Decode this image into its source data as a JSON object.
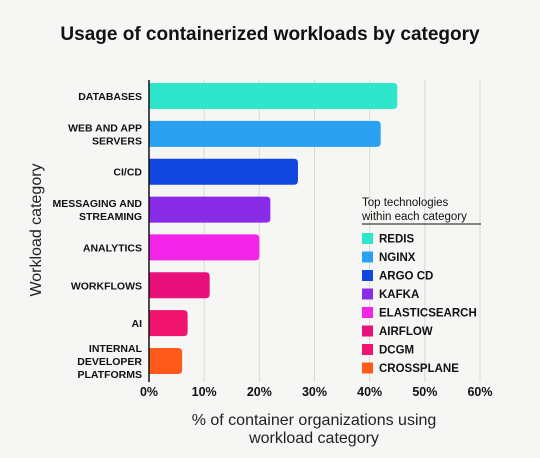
{
  "chart_data": {
    "type": "bar",
    "orientation": "horizontal",
    "title": "Usage of containerized workloads by category",
    "xlabel": "% of container organizations using workload category",
    "ylabel": "Workload category",
    "xlim": [
      0,
      60
    ],
    "xticks": [
      "0%",
      "10%",
      "20%",
      "30%",
      "40%",
      "50%",
      "60%"
    ],
    "grid": "vertical",
    "categories": [
      "DATABASES",
      "WEB AND APP SERVERS",
      "CI/CD",
      "MESSAGING AND STREAMING",
      "ANALYTICS",
      "WORKFLOWS",
      "AI",
      "INTERNAL DEVELOPER PLATFORMS"
    ],
    "category_lines": [
      [
        "DATABASES"
      ],
      [
        "WEB AND APP",
        "SERVERS"
      ],
      [
        "CI/CD"
      ],
      [
        "MESSAGING AND",
        "STREAMING"
      ],
      [
        "ANALYTICS"
      ],
      [
        "WORKFLOWS"
      ],
      [
        "AI"
      ],
      [
        "INTERNAL",
        "DEVELOPER",
        "PLATFORMS"
      ]
    ],
    "values": [
      45,
      42,
      27,
      22,
      20,
      11,
      7,
      6
    ],
    "colors": [
      "#2ee6cc",
      "#2aa0f0",
      "#1246e0",
      "#8a2be8",
      "#f423e8",
      "#e8107a",
      "#f0146e",
      "#ff5a1a"
    ],
    "legend": {
      "title_lines": [
        "Top technologies",
        "within each category"
      ],
      "placement": "right",
      "entries": [
        {
          "label": "REDIS",
          "color": "#2ee6cc"
        },
        {
          "label": "NGINX",
          "color": "#2aa0f0"
        },
        {
          "label": "ARGO CD",
          "color": "#1246e0"
        },
        {
          "label": "KAFKA",
          "color": "#8a2be8"
        },
        {
          "label": "ELASTICSEARCH",
          "color": "#f423e8"
        },
        {
          "label": "AIRFLOW",
          "color": "#e8107a"
        },
        {
          "label": "DCGM",
          "color": "#f0146e"
        },
        {
          "label": "CROSSPLANE",
          "color": "#ff5a1a"
        }
      ]
    }
  }
}
